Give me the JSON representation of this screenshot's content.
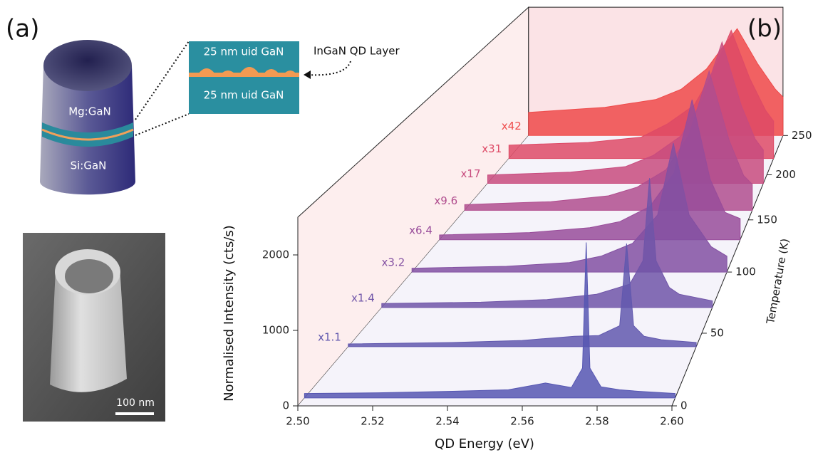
{
  "panel_a": {
    "label": "(a)",
    "layers": [
      "Mg:GaN",
      "Si:GaN"
    ],
    "inset": {
      "top": "25 nm uid GaN",
      "bottom": "25 nm uid GaN",
      "callout": "InGaN QD Layer"
    },
    "scale_bar": "100 nm"
  },
  "panel_b_label": "(b)",
  "chart_data": {
    "type": "waterfall",
    "xlabel": "QD Energy (eV)",
    "ylabel": "Normalised Intensity (cts/s)",
    "zlabel": "Temperature (K)",
    "xlim": [
      2.5,
      2.6
    ],
    "xticks": [
      {
        "value": 2.5,
        "label": "2.50"
      },
      2.52,
      2.54,
      2.56,
      2.58,
      {
        "value": 2.6,
        "label": "2.60"
      }
    ],
    "ylim": [
      0,
      2500
    ],
    "yticks": [
      0,
      1000,
      2000
    ],
    "zlim": [
      0,
      250
    ],
    "zticks": [
      0,
      50,
      100,
      150,
      200,
      250
    ],
    "series": [
      {
        "name": null,
        "z": 5,
        "color": "#5656b2",
        "x": [
          2.5,
          2.52,
          2.54,
          2.555,
          2.565,
          2.572,
          2.575,
          2.576,
          2.577,
          2.58,
          2.585,
          2.59,
          2.6
        ],
        "values": [
          60,
          70,
          90,
          110,
          200,
          140,
          400,
          2080,
          400,
          150,
          110,
          90,
          60
        ]
      },
      {
        "name": "x1.1",
        "z": 40,
        "color": "#6158ae",
        "x": [
          2.5,
          2.53,
          2.55,
          2.565,
          2.572,
          2.578,
          2.58,
          2.582,
          2.585,
          2.59,
          2.6
        ],
        "values": [
          40,
          60,
          90,
          150,
          160,
          300,
          1470,
          300,
          150,
          100,
          60
        ]
      },
      {
        "name": "x1.4",
        "z": 70,
        "color": "#7055a8",
        "x": [
          2.5,
          2.53,
          2.55,
          2.565,
          2.575,
          2.579,
          2.581,
          2.583,
          2.587,
          2.59,
          2.6
        ],
        "values": [
          60,
          80,
          120,
          200,
          350,
          700,
          1940,
          700,
          300,
          200,
          100
        ]
      },
      {
        "name": "x3.2",
        "z": 100,
        "color": "#8350a2",
        "x": [
          2.5,
          2.53,
          2.55,
          2.56,
          2.57,
          2.578,
          2.583,
          2.588,
          2.595,
          2.6
        ],
        "values": [
          60,
          90,
          150,
          250,
          450,
          900,
          2030,
          900,
          400,
          250
        ]
      },
      {
        "name": "x6.4",
        "z": 130,
        "color": "#984c9a",
        "x": [
          2.5,
          2.53,
          2.55,
          2.56,
          2.57,
          2.578,
          2.584,
          2.59,
          2.595,
          2.6
        ],
        "values": [
          80,
          120,
          200,
          300,
          550,
          1100,
          2310,
          1000,
          450,
          350
        ]
      },
      {
        "name": "x9.6",
        "z": 160,
        "color": "#b04d8e",
        "x": [
          2.5,
          2.53,
          2.55,
          2.56,
          2.57,
          2.578,
          2.585,
          2.592,
          2.597,
          2.6
        ],
        "values": [
          100,
          150,
          250,
          400,
          700,
          1300,
          2400,
          1200,
          600,
          450
        ]
      },
      {
        "name": "x17",
        "z": 190,
        "color": "#c84b7e",
        "x": [
          2.5,
          2.53,
          2.55,
          2.56,
          2.57,
          2.578,
          2.585,
          2.592,
          2.597,
          2.6
        ],
        "values": [
          150,
          200,
          300,
          500,
          850,
          1500,
          2540,
          1400,
          800,
          600
        ]
      },
      {
        "name": "x31",
        "z": 220,
        "color": "#de4a66",
        "x": [
          2.5,
          2.53,
          2.55,
          2.56,
          2.57,
          2.577,
          2.584,
          2.591,
          2.597,
          2.6
        ],
        "values": [
          250,
          300,
          400,
          650,
          1000,
          1600,
          2400,
          1500,
          900,
          700
        ]
      },
      {
        "name": "x42",
        "z": 250,
        "color": "#ee4a4a",
        "x": [
          2.5,
          2.53,
          2.55,
          2.56,
          2.57,
          2.576,
          2.582,
          2.59,
          2.597,
          2.6
        ],
        "values": [
          450,
          550,
          700,
          900,
          1300,
          1700,
          2080,
          1400,
          900,
          750
        ]
      }
    ]
  }
}
